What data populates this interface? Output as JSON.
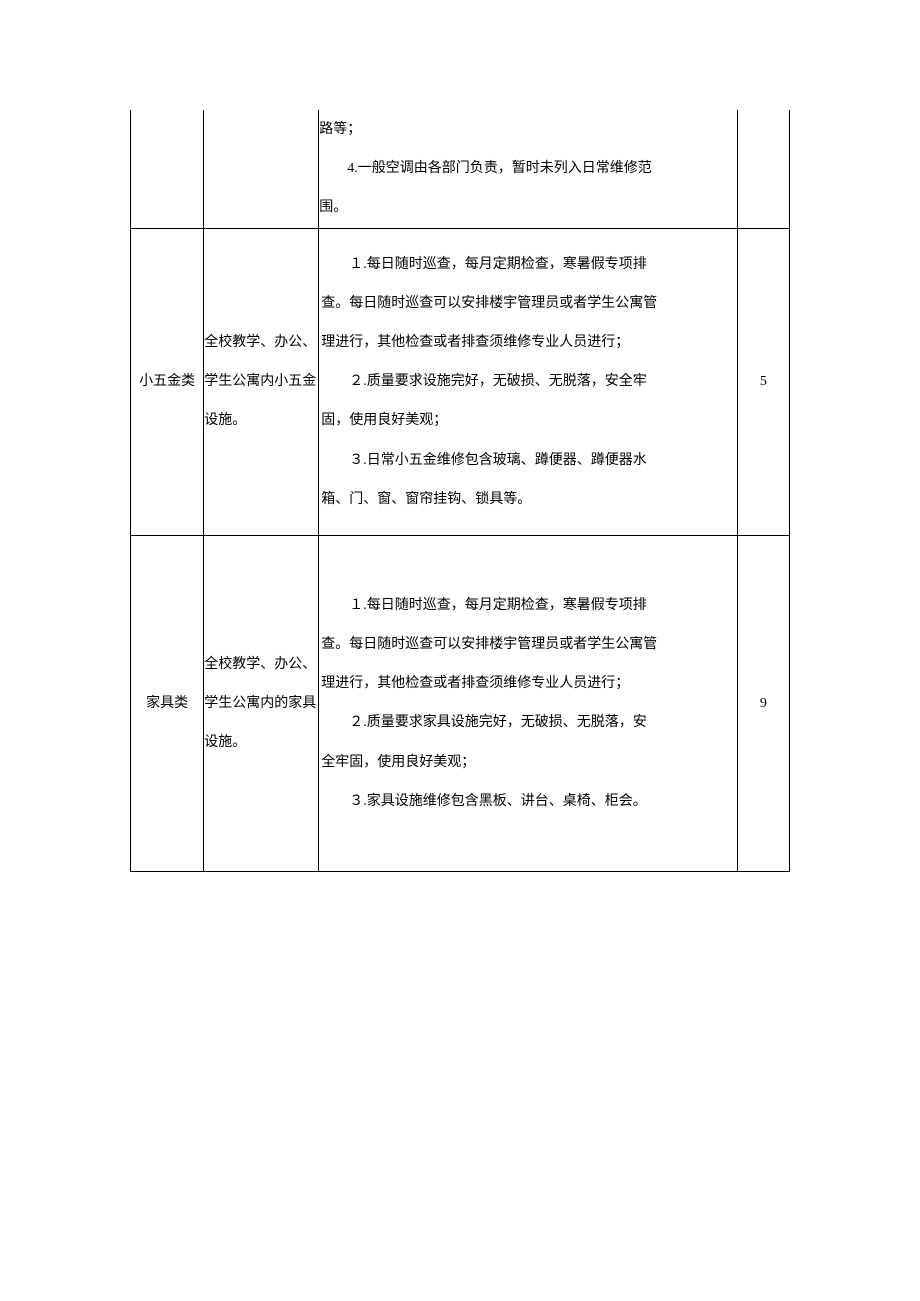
{
  "table": {
    "rows": [
      {
        "col1": "",
        "col2": "",
        "col3_lines": [
          {
            "text": "路等；",
            "indent": false
          },
          {
            "text": "4.一般空调由各部门负责，暂时未列入日常维修范",
            "indent": true
          },
          {
            "text": "围。",
            "indent": false
          }
        ],
        "col4": ""
      },
      {
        "col1": "小五金类",
        "col2": "全校教学、办公、学生公寓内小五金设施。",
        "col3_lines": [
          {
            "text": "１.每日随时巡查，每月定期检查，寒暑假专项排",
            "indent": true
          },
          {
            "text": "查。每日随时巡查可以安排楼宇管理员或者学生公寓管",
            "indent": false
          },
          {
            "text": "理进行，其他检查或者排查须维修专业人员进行；",
            "indent": false
          },
          {
            "text": "２.质量要求设施完好，无破损、无脱落，安全牢",
            "indent": true
          },
          {
            "text": "固，使用良好美观；",
            "indent": false
          },
          {
            "text": "３.日常小五金维修包含玻璃、蹲便器、蹲便器水",
            "indent": true
          },
          {
            "text": "箱、门、窗、窗帘挂钩、锁具等。",
            "indent": false
          }
        ],
        "col4": "5"
      },
      {
        "col1": "家具类",
        "col2": "全校教学、办公、学生公寓内的家具设施。",
        "col3_lines": [
          {
            "text": "１.每日随时巡查，每月定期检查，寒暑假专项排",
            "indent": true
          },
          {
            "text": "查。每日随时巡查可以安排楼宇管理员或者学生公寓管",
            "indent": false
          },
          {
            "text": "理进行，其他检查或者排查须维修专业人员进行；",
            "indent": false
          },
          {
            "text": "２.质量要求家具设施完好，无破损、无脱落，安",
            "indent": true
          },
          {
            "text": "全牢固，使用良好美观；",
            "indent": false
          },
          {
            "text": "３.家具设施维修包含黑板、讲台、桌椅、柜会。",
            "indent": true
          }
        ],
        "col4": "9"
      }
    ]
  }
}
